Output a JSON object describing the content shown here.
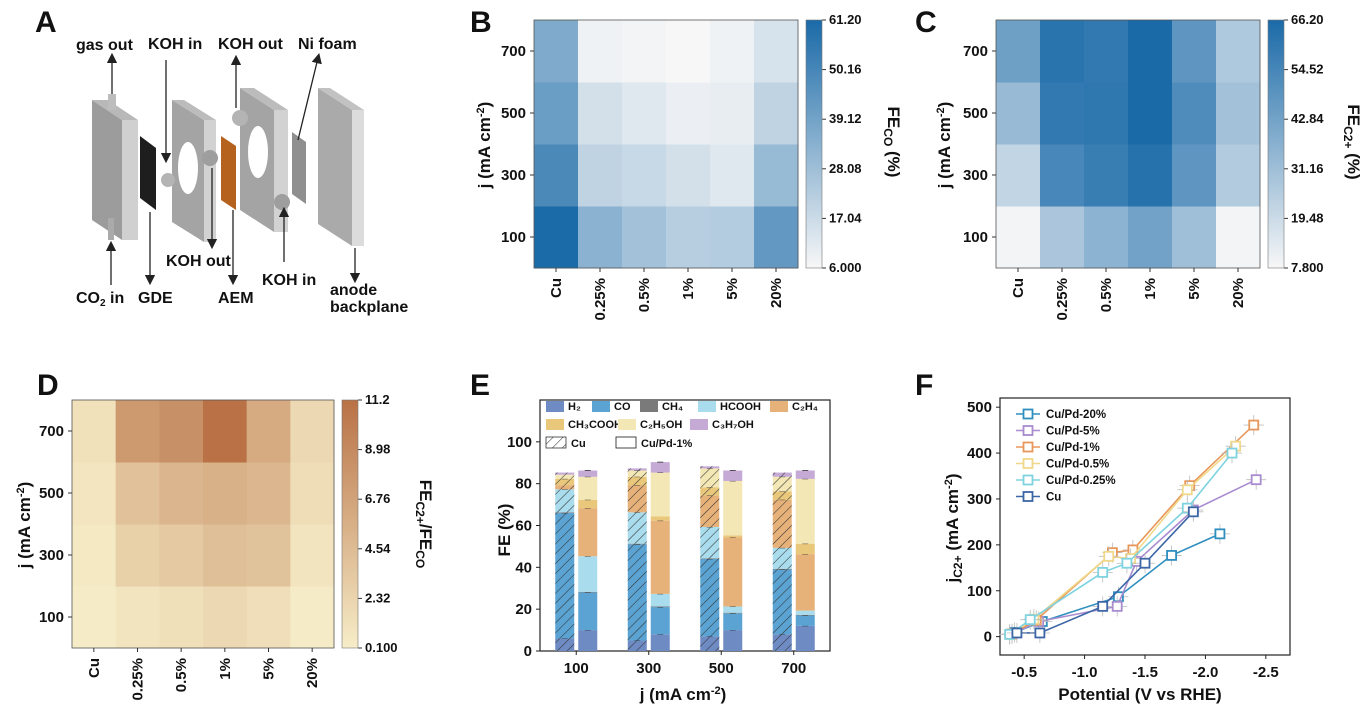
{
  "panel_letters": [
    "A",
    "B",
    "C",
    "D",
    "E",
    "F"
  ],
  "schematic": {
    "labels": {
      "gas_out": "gas out",
      "koh_in_1": "KOH in",
      "koh_out_1": "KOH out",
      "ni_foam": "Ni foam",
      "co2_in": "CO",
      "co2_sub": "2",
      "co2_tail": " in",
      "gde": "GDE",
      "koh_out_2": "KOH out",
      "aem": "AEM",
      "koh_in_2": "KOH in",
      "anode_1": "anode",
      "anode_2": "backplane"
    }
  },
  "chart_data": [
    {
      "panel": "B",
      "type": "heatmap",
      "x_categories": [
        "Cu",
        "0.25%",
        "0.5%",
        "1%",
        "5%",
        "20%"
      ],
      "y_categories": [
        "100",
        "300",
        "500",
        "700"
      ],
      "ylabel": "j (mA cm⁻²)",
      "colorbar_label": "FE_CO (%)",
      "colorbar_ticks": [
        "61.20",
        "50.16",
        "39.12",
        "28.08",
        "17.04",
        "6.000"
      ],
      "vmin": 6.0,
      "vmax": 61.2,
      "values": [
        [
          61,
          33,
          27,
          22,
          23,
          43
        ],
        [
          49,
          20,
          18,
          15,
          12,
          30
        ],
        [
          41,
          15,
          12,
          9,
          10,
          20
        ],
        [
          36,
          8,
          7,
          6,
          8,
          14
        ]
      ],
      "colors": {
        "low": "#f7f7f7",
        "high": "#1a6aa8"
      }
    },
    {
      "panel": "C",
      "type": "heatmap",
      "x_categories": [
        "Cu",
        "0.25%",
        "0.5%",
        "1%",
        "5%",
        "20%"
      ],
      "y_categories": [
        "100",
        "300",
        "500",
        "700"
      ],
      "ylabel": "j (mA cm⁻²)",
      "colorbar_label": "FE_C2+ (%)",
      "colorbar_ticks": [
        "66.20",
        "54.52",
        "42.84",
        "31.16",
        "19.48",
        "7.800"
      ],
      "vmin": 7.8,
      "vmax": 66.2,
      "values": [
        [
          9,
          28,
          36,
          43,
          31,
          9
        ],
        [
          22,
          54,
          58,
          63,
          48,
          26
        ],
        [
          33,
          60,
          61,
          66,
          52,
          30
        ],
        [
          44,
          62,
          60,
          66,
          48,
          27
        ]
      ],
      "colors": {
        "low": "#f7f7f7",
        "high": "#1a6aa8"
      }
    },
    {
      "panel": "D",
      "type": "heatmap",
      "x_categories": [
        "Cu",
        "0.25%",
        "0.5%",
        "1%",
        "5%",
        "20%"
      ],
      "y_categories": [
        "100",
        "300",
        "500",
        "700"
      ],
      "ylabel": "j (mA cm⁻²)",
      "colorbar_label": "FE_C2+/FE_CO",
      "colorbar_ticks": [
        "11.2",
        "8.98",
        "6.76",
        "4.54",
        "2.32",
        "0.100"
      ],
      "vmin": 0.1,
      "vmax": 11.2,
      "values": [
        [
          0.2,
          0.9,
          1.3,
          2.0,
          1.4,
          0.2
        ],
        [
          0.5,
          2.7,
          3.3,
          4.2,
          3.9,
          0.9
        ],
        [
          0.8,
          4.0,
          5.1,
          5.5,
          5.0,
          1.5
        ],
        [
          1.2,
          7.6,
          8.4,
          11.2,
          6.0,
          1.9
        ]
      ],
      "colors": {
        "low": "#f6edc8",
        "high": "#b97145"
      }
    },
    {
      "panel": "E",
      "type": "bar",
      "categories": [
        "100",
        "300",
        "500",
        "700"
      ],
      "xlabel": "j (mA cm⁻²)",
      "ylabel": "FE (%)",
      "ylim": [
        0,
        120
      ],
      "yticks": [
        0,
        20,
        40,
        60,
        80,
        100
      ],
      "legend": {
        "products": [
          "H₂",
          "CO",
          "CH₄",
          "HCOOH",
          "C₂H₄",
          "CH₃COOH",
          "C₂H₅OH",
          "C₃H₇OH"
        ],
        "styles": [
          "Cu",
          "Cu/Pd-1%"
        ]
      },
      "product_colors": [
        "#6f8bc4",
        "#5aa3d2",
        "#7a7a7a",
        "#a9dced",
        "#e7b27a",
        "#e9c77b",
        "#f3e7b5",
        "#c5aad5"
      ],
      "series": [
        {
          "name": "Cu",
          "stacks": [
            [
              6,
              60,
              0.3,
              11,
              2,
              3,
              2,
              1
            ],
            [
              5,
              46,
              0.3,
              15,
              13,
              4,
              3,
              1
            ],
            [
              7,
              37,
              0.3,
              15,
              15,
              4,
              9,
              1
            ],
            [
              8,
              31,
              0.3,
              10,
              23,
              4,
              7,
              2
            ]
          ]
        },
        {
          "name": "Cu/Pd-1%",
          "stacks": [
            [
              10,
              18,
              0.3,
              17,
              23,
              4,
              11,
              3
            ],
            [
              8,
              13,
              0.3,
              6,
              35,
              2,
              21,
              5
            ],
            [
              10,
              8,
              0.3,
              3,
              33,
              1,
              26,
              5
            ],
            [
              12,
              5,
              0.3,
              2,
              27,
              5,
              31,
              4
            ]
          ]
        }
      ]
    },
    {
      "panel": "F",
      "type": "scatter",
      "xlabel": "Potential (V vs RHE)",
      "ylabel": "j_C2+ (mA cm⁻²)",
      "xlim": [
        -0.3,
        -2.7
      ],
      "ylim": [
        -40,
        520
      ],
      "xticks": [
        -0.5,
        -1.0,
        -1.5,
        -2.0,
        -2.5
      ],
      "yticks": [
        0,
        100,
        200,
        300,
        400,
        500
      ],
      "series": [
        {
          "name": "Cu/Pd-20%",
          "color": "#2e8fbf",
          "x": [
            -0.42,
            -0.65,
            -1.28,
            -1.72,
            -2.12
          ],
          "y": [
            9,
            33,
            87,
            177,
            224
          ]
        },
        {
          "name": "Cu/Pd-5%",
          "color": "#a98bd0",
          "x": [
            -0.4,
            -0.62,
            -1.27,
            -1.43,
            -1.9,
            -2.42
          ],
          "y": [
            6,
            33,
            66,
            164,
            276,
            342
          ]
        },
        {
          "name": "Cu/Pd-1%",
          "color": "#e8975a",
          "x": [
            -0.4,
            -0.6,
            -1.23,
            -1.4,
            -1.87,
            -2.4
          ],
          "y": [
            6,
            36,
            183,
            189,
            329,
            461
          ]
        },
        {
          "name": "Cu/Pd-0.5%",
          "color": "#f0d88a",
          "x": [
            -0.38,
            -0.58,
            -1.2,
            -1.38,
            -1.85,
            -2.25
          ],
          "y": [
            5,
            38,
            175,
            170,
            320,
            415
          ]
        },
        {
          "name": "Cu/Pd-0.25%",
          "color": "#7fd3e0",
          "x": [
            -0.38,
            -0.55,
            -1.15,
            -1.35,
            -1.85,
            -2.22
          ],
          "y": [
            5,
            37,
            140,
            160,
            280,
            400
          ]
        },
        {
          "name": "Cu",
          "color": "#3c66a6",
          "x": [
            -0.44,
            -0.63,
            -1.15,
            -1.5,
            -1.9
          ],
          "y": [
            8,
            8,
            66,
            160,
            272
          ]
        }
      ]
    }
  ],
  "tick_labels_x_heatmap": [
    "Cu",
    "0.25%",
    "0.5%",
    "1%",
    "5%",
    "20%"
  ],
  "tick_labels_x_E": [
    "100",
    "300",
    "500",
    "700"
  ],
  "tick_labels_x_F": [
    "-0.5",
    "-1.0",
    "-1.5",
    "-2.0",
    "-2.5"
  ],
  "tick_labels_y_F": [
    "0",
    "100",
    "200",
    "300",
    "400",
    "500"
  ],
  "tick_labels_y_E": [
    "0",
    "20",
    "40",
    "60",
    "80",
    "100"
  ],
  "tick_labels_y_heat": [
    "100",
    "300",
    "500",
    "700"
  ]
}
